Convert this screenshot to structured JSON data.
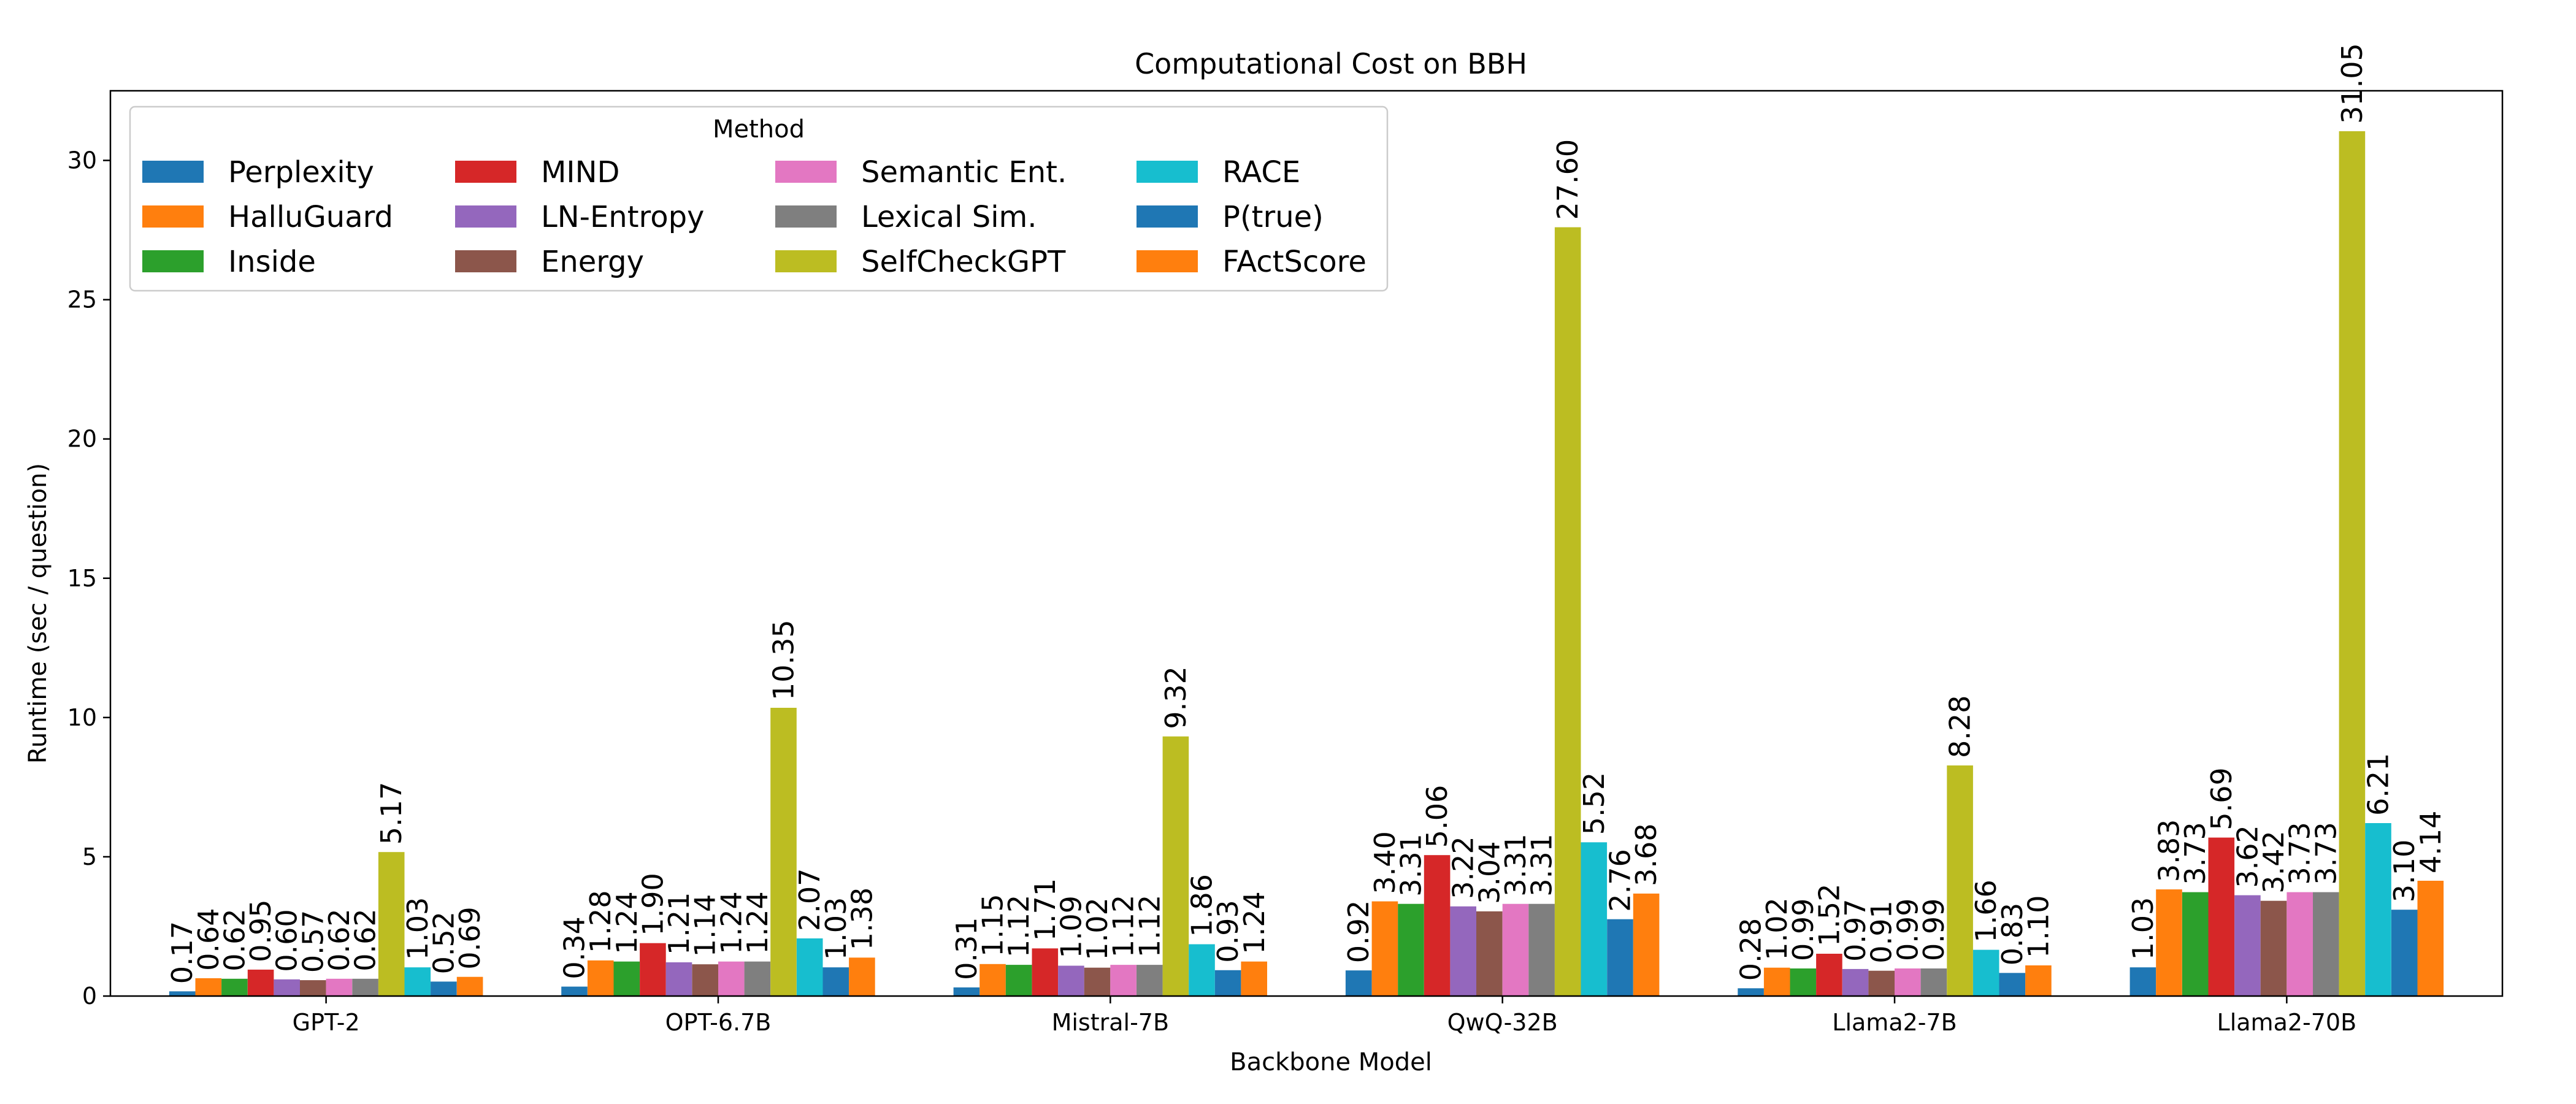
{
  "chart_data": {
    "type": "bar",
    "title": "Computational Cost on BBH",
    "xlabel": "Backbone Model",
    "ylabel": "Runtime (sec / question)",
    "ylim": [
      0,
      32.5
    ],
    "yticks": [
      0,
      5,
      10,
      15,
      20,
      25,
      30
    ],
    "categories": [
      "GPT-2",
      "OPT-6.7B",
      "Mistral-7B",
      "QwQ-32B",
      "Llama2-7B",
      "Llama2-70B"
    ],
    "legend": {
      "title": "Method",
      "placement": "top-left",
      "columns": 4
    },
    "grid": false,
    "series": [
      {
        "name": "Perplexity",
        "color": "#1f77b4",
        "values": [
          0.17,
          0.34,
          0.31,
          0.92,
          0.28,
          1.03
        ]
      },
      {
        "name": "HalluGuard",
        "color": "#ff7f0e",
        "values": [
          0.64,
          1.28,
          1.15,
          3.4,
          1.02,
          3.83
        ]
      },
      {
        "name": "Inside",
        "color": "#2ca02c",
        "values": [
          0.62,
          1.24,
          1.12,
          3.31,
          0.99,
          3.73
        ]
      },
      {
        "name": "MIND",
        "color": "#d62728",
        "values": [
          0.95,
          1.9,
          1.71,
          5.06,
          1.52,
          5.69
        ]
      },
      {
        "name": "LN-Entropy",
        "color": "#9467bd",
        "values": [
          0.6,
          1.21,
          1.09,
          3.22,
          0.97,
          3.62
        ]
      },
      {
        "name": "Energy",
        "color": "#8c564b",
        "values": [
          0.57,
          1.14,
          1.02,
          3.04,
          0.91,
          3.42
        ]
      },
      {
        "name": "Semantic Ent.",
        "color": "#e377c2",
        "values": [
          0.62,
          1.24,
          1.12,
          3.31,
          0.99,
          3.73
        ]
      },
      {
        "name": "Lexical Sim.",
        "color": "#7f7f7f",
        "values": [
          0.62,
          1.24,
          1.12,
          3.31,
          0.99,
          3.73
        ]
      },
      {
        "name": "SelfCheckGPT",
        "color": "#bcbd22",
        "values": [
          5.17,
          10.35,
          9.32,
          27.6,
          8.28,
          31.05
        ]
      },
      {
        "name": "RACE",
        "color": "#17becf",
        "values": [
          1.03,
          2.07,
          1.86,
          5.52,
          1.66,
          6.21
        ]
      },
      {
        "name": "P(true)",
        "color": "#1f77b4",
        "values": [
          0.52,
          1.03,
          0.93,
          2.76,
          0.83,
          3.1
        ]
      },
      {
        "name": "FActScore",
        "color": "#ff7f0e",
        "values": [
          0.69,
          1.38,
          1.24,
          3.68,
          1.1,
          4.14
        ]
      }
    ]
  }
}
